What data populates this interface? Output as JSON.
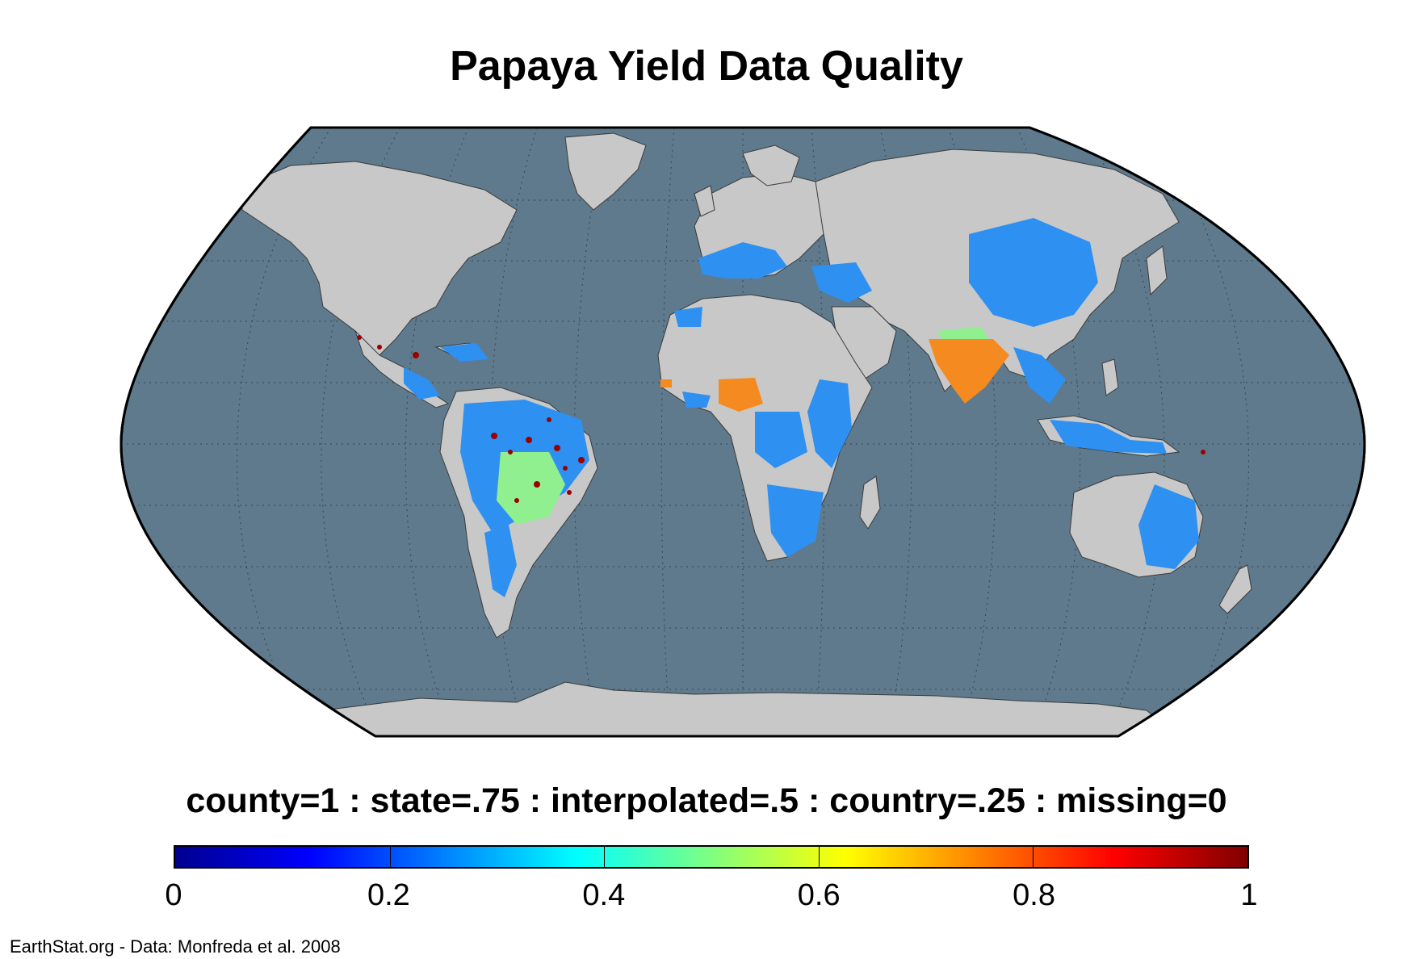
{
  "title": "Papaya Yield Data Quality",
  "legend_text": "county=1 : state=.75 : interpolated=.5 : country=.25 : missing=0",
  "credit": "EarthStat.org - Data: Monfreda et al. 2008",
  "colorbar": {
    "min": 0,
    "max": 1,
    "ticks": [
      {
        "value": 0,
        "label": "0"
      },
      {
        "value": 0.2,
        "label": "0.2"
      },
      {
        "value": 0.4,
        "label": "0.4"
      },
      {
        "value": 0.6,
        "label": "0.6"
      },
      {
        "value": 0.8,
        "label": "0.8"
      },
      {
        "value": 1,
        "label": "1"
      }
    ],
    "colormap": [
      "#00008f",
      "#0000ff",
      "#0080ff",
      "#00ffff",
      "#80ff80",
      "#ffff00",
      "#ff8000",
      "#ff0000",
      "#800000"
    ]
  },
  "colors": {
    "ocean": "#5f7a8c",
    "land": "#c8c8c8",
    "country_level": "#2e90f0",
    "interpolated": "#90f090",
    "state_level": "#f58a20",
    "county_level": "#9a0000"
  }
}
